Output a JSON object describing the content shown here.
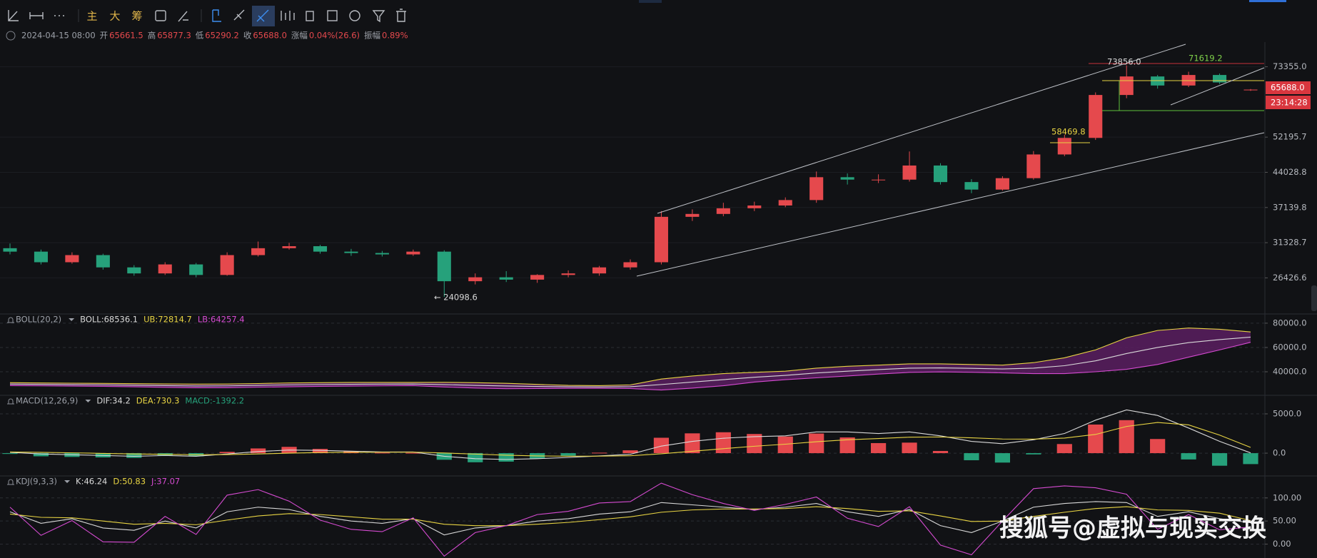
{
  "toolbar": {
    "buttons": [
      "主",
      "大",
      "筹"
    ]
  },
  "info_bar": {
    "time": "2024-04-15 08:00",
    "items": [
      {
        "label": "开",
        "value": "65661.5"
      },
      {
        "label": "高",
        "value": "65877.3"
      },
      {
        "label": "低",
        "value": "65290.2"
      },
      {
        "label": "收",
        "value": "65688.0"
      },
      {
        "label": "涨幅",
        "value": "0.04%(26.6)"
      },
      {
        "label": "振幅",
        "value": "0.89%"
      }
    ]
  },
  "price_tag": {
    "price": "65688.0",
    "countdown": "23:14:28"
  },
  "annotations": [
    "73856.0",
    "71619.2",
    "58469.8",
    "← 24098.6"
  ],
  "watermark": "搜狐号@虚拟与现实交换",
  "chart_data": [
    {
      "type": "candlestick",
      "log_scale": true,
      "up_color": "#e5494d",
      "down_color": "#26a17b",
      "ylim": [
        22500,
        81800
      ],
      "yticks": [
        {
          "value": 73355,
          "label": "73355.0"
        },
        52195.7,
        44028.8,
        37139.8,
        31328.7,
        26426.6
      ],
      "grid": true,
      "open": [
        30500,
        30000,
        28500,
        29500,
        27800,
        27000,
        28200,
        26800,
        29500,
        30500,
        30800,
        30000,
        29800,
        29600,
        30000,
        26000,
        26500,
        26200,
        26800,
        27000,
        27800,
        28500,
        35500,
        36000,
        37000,
        37500,
        38500,
        43000,
        42500,
        42500,
        45500,
        42000,
        40500,
        42800,
        48000,
        52000,
        64000,
        70000,
        67000,
        70500,
        65661.5
      ],
      "high": [
        31200,
        30300,
        29900,
        29700,
        28100,
        28500,
        28400,
        29900,
        31500,
        31300,
        31000,
        30400,
        30100,
        30300,
        30200,
        27000,
        27300,
        26900,
        27400,
        28000,
        28900,
        36500,
        36800,
        38000,
        38200,
        39000,
        44200,
        43800,
        43600,
        48700,
        46000,
        42600,
        43200,
        48800,
        52800,
        64800,
        73856.0,
        70500,
        71619.2,
        71000,
        65877.3
      ],
      "low": [
        29600,
        28200,
        28300,
        27500,
        26700,
        26800,
        26500,
        26700,
        29300,
        30300,
        29700,
        29400,
        29300,
        29400,
        24098.6,
        25600,
        25900,
        25800,
        26500,
        26700,
        27500,
        28200,
        34800,
        35600,
        36500,
        37200,
        38000,
        41500,
        41800,
        42100,
        41500,
        39800,
        40300,
        42500,
        47600,
        51500,
        63000,
        66000,
        66500,
        67500,
        65290.2
      ],
      "close": [
        30000,
        28500,
        29500,
        27800,
        27000,
        28200,
        26800,
        29500,
        30500,
        30800,
        30000,
        29800,
        29600,
        30000,
        26000,
        26500,
        26200,
        26800,
        27000,
        27800,
        28500,
        35500,
        36000,
        37000,
        37500,
        38500,
        43000,
        42500,
        42500,
        45500,
        42000,
        40500,
        42800,
        48000,
        52000,
        64000,
        70000,
        67000,
        70500,
        68000,
        65688
      ]
    },
    {
      "type": "band",
      "indicator": "BOLL(20,2)",
      "fill_color": "#5b1f60",
      "ylim": [
        21200,
        87000
      ],
      "yticks": [
        {
          "value": 80000,
          "label": "80000.0"
        },
        {
          "value": 60000,
          "label": "60000.0"
        },
        {
          "value": 40000,
          "label": "40000.0"
        }
      ],
      "series": [
        {
          "name": "BOLL:68536.1",
          "color": "#d9d9d9",
          "values": [
            29800,
            29600,
            29400,
            29200,
            28900,
            28600,
            28300,
            28400,
            28800,
            29200,
            29500,
            29700,
            29800,
            29900,
            29400,
            28800,
            28300,
            27900,
            27600,
            27500,
            27700,
            29500,
            31500,
            33500,
            35500,
            37000,
            39000,
            40500,
            41800,
            43000,
            43200,
            42800,
            42300,
            43000,
            45000,
            49000,
            55000,
            60000,
            64000,
            66500,
            68536.1
          ]
        },
        {
          "name": "UB:72814.7",
          "color": "#e8d443",
          "values": [
            31000,
            30800,
            30600,
            30400,
            30200,
            30000,
            29800,
            29900,
            30300,
            30800,
            31000,
            31200,
            31200,
            31200,
            31300,
            31000,
            30500,
            29600,
            28800,
            28600,
            29200,
            34000,
            36500,
            38500,
            39500,
            40500,
            43000,
            44500,
            45500,
            46500,
            46500,
            46000,
            45500,
            47500,
            51500,
            58000,
            68000,
            74000,
            76000,
            75000,
            72814.7
          ]
        },
        {
          "name": "LB:64257.4",
          "color": "#d54bd1",
          "values": [
            28600,
            28400,
            28200,
            28000,
            27600,
            27200,
            26800,
            26900,
            27300,
            27600,
            28000,
            28200,
            28400,
            28600,
            27500,
            26600,
            26100,
            26200,
            26400,
            26400,
            26200,
            25000,
            26500,
            28500,
            31500,
            33500,
            35000,
            36500,
            38100,
            39500,
            39900,
            39600,
            39100,
            38500,
            38500,
            40000,
            42000,
            46000,
            52000,
            58000,
            64257.4
          ]
        }
      ]
    },
    {
      "type": "indicator",
      "indicator": "MACD(12,26,9)",
      "ylim": [
        -2900,
        7270
      ],
      "yticks": [
        {
          "value": 5000,
          "label": "5000.0"
        },
        {
          "value": 0,
          "label": "0.0"
        }
      ],
      "series": [
        {
          "name": "DIF:34.2",
          "type": "line",
          "color": "#d9d9d9",
          "values": [
            100,
            -100,
            -200,
            -300,
            -400,
            -300,
            -400,
            -100,
            200,
            400,
            350,
            250,
            150,
            150,
            -400,
            -700,
            -800,
            -700,
            -550,
            -350,
            -150,
            900,
            1500,
            1900,
            2100,
            2200,
            2700,
            2700,
            2500,
            2700,
            2200,
            1500,
            1200,
            1700,
            2500,
            4200,
            5500,
            4800,
            3200,
            1500,
            34.2
          ]
        },
        {
          "name": "DEA:730.3",
          "type": "line",
          "color": "#e8d443",
          "values": [
            150,
            100,
            40,
            -30,
            -100,
            -150,
            -200,
            -180,
            -100,
            0,
            80,
            110,
            120,
            130,
            20,
            -120,
            -260,
            -350,
            -390,
            -380,
            -330,
            -80,
            240,
            570,
            880,
            1140,
            1450,
            1700,
            1860,
            2030,
            2060,
            1950,
            1800,
            1780,
            1920,
            2380,
            3400,
            3900,
            3600,
            2300,
            730.3
          ]
        },
        {
          "name": "MACD:-1392.2",
          "type": "bar",
          "color": "#26a17b",
          "up_color": "#e5494d",
          "down_color": "#26a17b",
          "values": [
            -100,
            -400,
            -480,
            -540,
            -600,
            -300,
            -400,
            160,
            600,
            800,
            540,
            280,
            60,
            40,
            -840,
            -1160,
            -1080,
            -700,
            -320,
            60,
            360,
            1960,
            2520,
            2660,
            2440,
            2120,
            2500,
            2000,
            1280,
            1340,
            280,
            -900,
            -1200,
            -160,
            1160,
            3640,
            4200,
            1800,
            -800,
            -1600,
            -1392.2
          ]
        }
      ]
    },
    {
      "type": "indicator",
      "indicator": "KDJ(9,3,3)",
      "ylim": [
        -30,
        146
      ],
      "yticks": [
        {
          "value": 100,
          "label": "100.00"
        },
        {
          "value": 50,
          "label": "50.00"
        },
        {
          "value": 0,
          "label": "0.00"
        }
      ],
      "series": [
        {
          "name": "K:46.24",
          "type": "line",
          "color": "#d9d9d9",
          "values": [
            70,
            45,
            55,
            35,
            30,
            50,
            35,
            70,
            80,
            75,
            60,
            50,
            45,
            55,
            20,
            35,
            40,
            50,
            55,
            65,
            70,
            90,
            85,
            80,
            75,
            80,
            88,
            70,
            60,
            75,
            40,
            25,
            50,
            80,
            88,
            92,
            90,
            60,
            70,
            55,
            46.24
          ]
        },
        {
          "name": "D:50.83",
          "type": "line",
          "color": "#e8d443",
          "values": [
            65,
            58,
            57,
            50,
            43,
            45,
            42,
            52,
            61,
            66,
            64,
            59,
            54,
            54,
            43,
            40,
            40,
            43,
            47,
            53,
            59,
            69,
            74,
            76,
            76,
            77,
            81,
            77,
            71,
            72,
            61,
            49,
            50,
            60,
            69,
            77,
            81,
            74,
            73,
            67,
            50.83
          ]
        },
        {
          "name": "J:37.07",
          "type": "line",
          "color": "#d54bd1",
          "values": [
            80,
            19,
            51,
            5,
            4,
            60,
            21,
            106,
            118,
            93,
            52,
            32,
            27,
            57,
            -26,
            25,
            40,
            64,
            71,
            89,
            92,
            132,
            107,
            88,
            73,
            86,
            102,
            56,
            38,
            81,
            -2,
            -23,
            50,
            120,
            126,
            122,
            108,
            32,
            64,
            31,
            37.07
          ]
        }
      ]
    }
  ]
}
